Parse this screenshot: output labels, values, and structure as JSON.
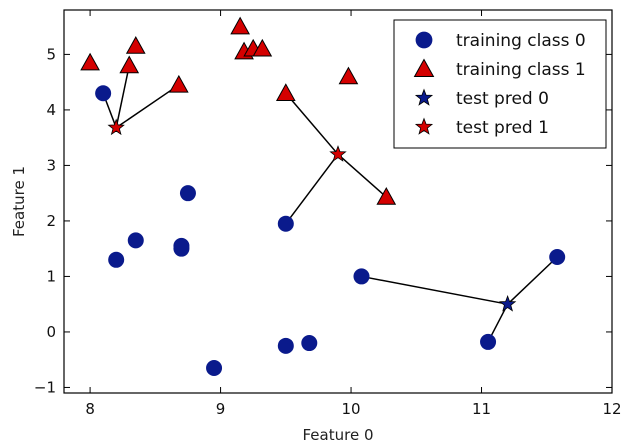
{
  "chart_data": {
    "type": "scatter",
    "title": "",
    "xlabel": "Feature 0",
    "ylabel": "Feature 1",
    "xlim": [
      7.8,
      12
    ],
    "ylim": [
      -1.1,
      5.8
    ],
    "xticks": [
      "8",
      "9",
      "10",
      "11",
      "12"
    ],
    "yticks": [
      "−1",
      "0",
      "1",
      "2",
      "3",
      "4",
      "5"
    ],
    "xtick_values": [
      8,
      9,
      10,
      11,
      12
    ],
    "ytick_values": [
      -1,
      0,
      1,
      2,
      3,
      4,
      5
    ],
    "grid": false,
    "legend_position": "top-right",
    "series": [
      {
        "name": "training class 0",
        "marker": "circle",
        "color": "#0a1a8c",
        "points": [
          [
            8.1,
            4.3
          ],
          [
            8.35,
            1.65
          ],
          [
            8.2,
            1.3
          ],
          [
            8.7,
            1.55
          ],
          [
            8.7,
            1.5
          ],
          [
            8.75,
            2.5
          ],
          [
            8.95,
            -0.65
          ],
          [
            9.5,
            1.95
          ],
          [
            9.5,
            -0.25
          ],
          [
            9.68,
            -0.2
          ],
          [
            10.08,
            1.0
          ],
          [
            11.05,
            -0.18
          ],
          [
            11.58,
            1.35
          ]
        ]
      },
      {
        "name": "training class 1",
        "marker": "triangle",
        "color": "#d40000",
        "points": [
          [
            8.0,
            4.85
          ],
          [
            8.3,
            4.8
          ],
          [
            8.35,
            5.15
          ],
          [
            8.68,
            4.45
          ],
          [
            9.15,
            5.5
          ],
          [
            9.18,
            5.05
          ],
          [
            9.25,
            5.1
          ],
          [
            9.32,
            5.1
          ],
          [
            9.5,
            4.3
          ],
          [
            9.98,
            4.6
          ],
          [
            10.27,
            2.43
          ]
        ]
      },
      {
        "name": "test pred 0",
        "marker": "star",
        "color": "#0a1a8c",
        "points": [
          [
            11.2,
            0.5
          ]
        ]
      },
      {
        "name": "test pred 1",
        "marker": "star",
        "color": "#d40000",
        "points": [
          [
            8.2,
            3.68
          ],
          [
            9.9,
            3.2
          ]
        ]
      }
    ],
    "neighbor_lines": [
      [
        [
          11.2,
          0.5
        ],
        [
          10.08,
          1.0
        ]
      ],
      [
        [
          11.2,
          0.5
        ],
        [
          11.05,
          -0.18
        ]
      ],
      [
        [
          11.2,
          0.5
        ],
        [
          11.58,
          1.35
        ]
      ],
      [
        [
          8.2,
          3.68
        ],
        [
          8.1,
          4.3
        ]
      ],
      [
        [
          8.2,
          3.68
        ],
        [
          8.3,
          4.8
        ]
      ],
      [
        [
          8.2,
          3.68
        ],
        [
          8.68,
          4.45
        ]
      ],
      [
        [
          9.9,
          3.2
        ],
        [
          9.5,
          1.95
        ]
      ],
      [
        [
          9.9,
          3.2
        ],
        [
          9.5,
          4.3
        ]
      ],
      [
        [
          9.9,
          3.2
        ],
        [
          10.27,
          2.43
        ]
      ]
    ]
  }
}
